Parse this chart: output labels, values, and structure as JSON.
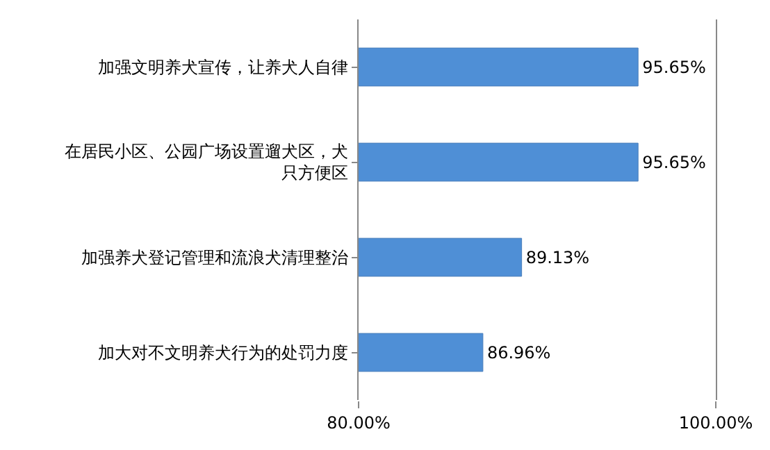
{
  "chart_data": {
    "type": "bar",
    "orientation": "horizontal",
    "categories": [
      "加强文明养犬宣传，让养犬人自律",
      "在居民小区、公园广场设置遛犬区，犬只方便区",
      "加强养犬登记管理和流浪犬清理整治",
      "加大对不文明养犬行为的处罚力度"
    ],
    "values": [
      95.65,
      95.65,
      89.13,
      86.96
    ],
    "value_labels": [
      "95.65%",
      "95.65%",
      "89.13%",
      "86.96%"
    ],
    "color": "#4f8fd6",
    "xlim": [
      80,
      100
    ],
    "xticks": [
      {
        "value": 80,
        "label": "80.00%"
      },
      {
        "value": 100,
        "label": "100.00%"
      }
    ]
  }
}
